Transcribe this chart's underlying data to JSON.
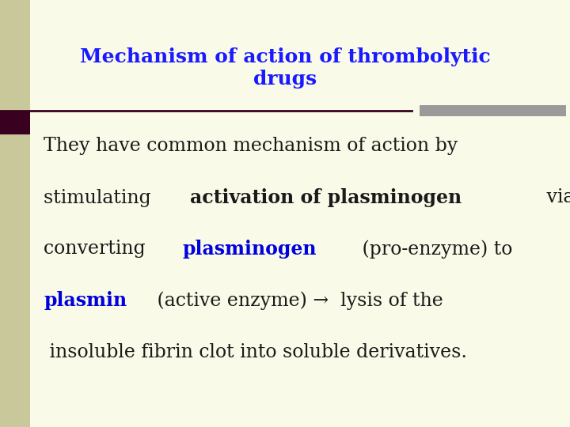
{
  "title": "Mechanism of action of thrombolytic\ndrugs",
  "title_color": "#1a1aff",
  "title_fontsize": 18,
  "bg_color": "#fafae8",
  "left_bar_color": "#c8c89a",
  "right_bar_color": "#9a9a9a",
  "divider_color": "#3a0020",
  "dark_sq_color": "#3a0020",
  "line1": {
    "parts": [
      {
        "text": "They have common mechanism of action by",
        "color": "#1a1a1a",
        "bold": false
      }
    ]
  },
  "line2": {
    "parts": [
      {
        "text": "stimulating ",
        "color": "#1a1a1a",
        "bold": false
      },
      {
        "text": "activation of plasminogen",
        "color": "#1a1a1a",
        "bold": true
      },
      {
        "text": " via",
        "color": "#1a1a1a",
        "bold": false
      }
    ]
  },
  "line3": {
    "parts": [
      {
        "text": "converting ",
        "color": "#1a1a1a",
        "bold": false
      },
      {
        "text": "plasminogen",
        "color": "#0000dd",
        "bold": true
      },
      {
        "text": " (pro-enzyme) to",
        "color": "#1a1a1a",
        "bold": false
      }
    ]
  },
  "line4": {
    "parts": [
      {
        "text": "plasmin",
        "color": "#0000dd",
        "bold": true
      },
      {
        "text": " (active enzyme) →  lysis of the",
        "color": "#1a1a1a",
        "bold": false
      }
    ]
  },
  "line5": {
    "parts": [
      {
        "text": " insoluble fibrin clot into soluble derivatives.",
        "color": "#1a1a1a",
        "bold": false
      }
    ]
  },
  "body_fontsize": 17
}
